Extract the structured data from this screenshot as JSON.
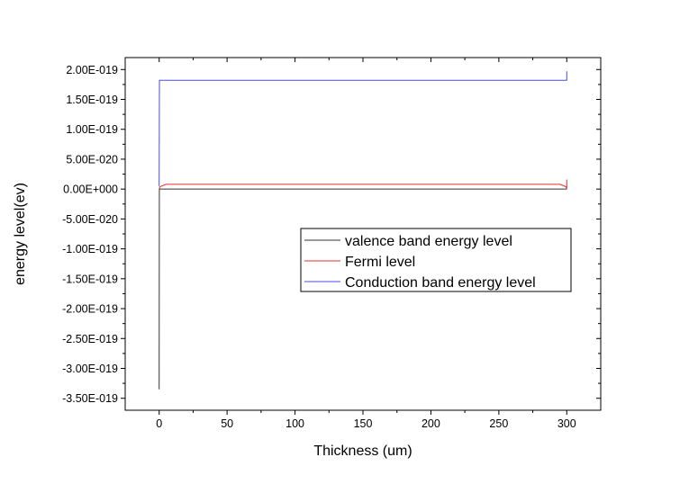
{
  "chart_data": {
    "type": "line",
    "title": "",
    "xlabel": "Thickness (um)",
    "ylabel": "energy level(ev)",
    "xlim": [
      -25,
      325
    ],
    "ylim": [
      -3.7e-19,
      2.2e-19
    ],
    "grid": false,
    "legend_position": "center-right",
    "x_ticks": [
      0,
      50,
      100,
      150,
      200,
      250,
      300
    ],
    "x_tick_labels": [
      "0",
      "50",
      "100",
      "150",
      "200",
      "250",
      "300"
    ],
    "y_ticks": [
      2e-19,
      1.5e-19,
      1e-19,
      5e-20,
      0,
      -5e-20,
      -1e-19,
      -1.5e-19,
      -2e-19,
      -2.5e-19,
      -3e-19,
      -3.5e-19
    ],
    "y_tick_labels": [
      "2.00E-019",
      "1.50E-019",
      "1.00E-019",
      "5.00E-020",
      "0.00E+000",
      "-5.00E-020",
      "-1.00E-019",
      "-1.50E-019",
      "-2.00E-019",
      "-2.50E-019",
      "-3.00E-019",
      "-3.50E-019"
    ],
    "series": [
      {
        "name": "valence band energy level",
        "color": "#333333",
        "points": [
          [
            0,
            -3.35e-19
          ],
          [
            0.15,
            0.0
          ],
          [
            300,
            0.0
          ]
        ]
      },
      {
        "name": "Fermi level",
        "color": "#e03030",
        "points": [
          [
            0,
            0.0
          ],
          [
            0.6,
            4e-21
          ],
          [
            5,
            8e-21
          ],
          [
            295,
            8e-21
          ],
          [
            299.4,
            4e-21
          ],
          [
            300,
            0.0
          ],
          [
            300,
            1.6e-20
          ]
        ]
      },
      {
        "name": "Conduction band energy level",
        "color": "#4a4ae0",
        "points": [
          [
            0,
            5e-21
          ],
          [
            0.2,
            1.82e-19
          ],
          [
            300,
            1.82e-19
          ],
          [
            300,
            1.97e-19
          ]
        ]
      }
    ]
  }
}
